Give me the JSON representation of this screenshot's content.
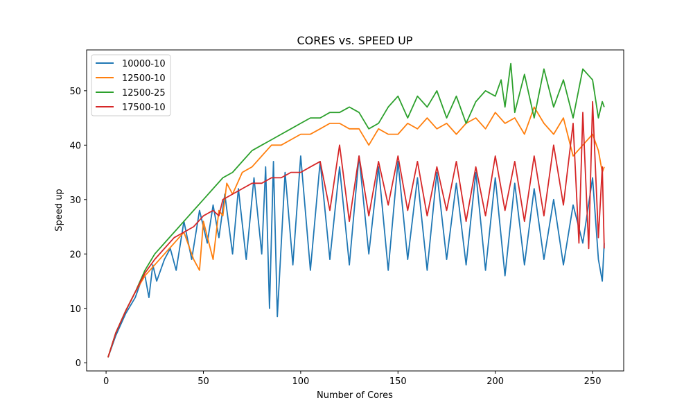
{
  "chart_data": {
    "type": "line",
    "title": "CORES vs. SPEED UP",
    "xlabel": "Number of Cores",
    "ylabel": "Speed up",
    "xlim": [
      -10,
      266
    ],
    "ylim": [
      -1.5,
      57.5
    ],
    "xticks": [
      0,
      50,
      100,
      150,
      200,
      250
    ],
    "yticks": [
      0,
      10,
      20,
      30,
      40,
      50
    ],
    "grid": false,
    "legend_position": "top-left",
    "series": [
      {
        "name": "10000-10",
        "color": "#1f77b4",
        "x": [
          1,
          5,
          10,
          15,
          18,
          20,
          22,
          24,
          26,
          30,
          33,
          36,
          40,
          44,
          48,
          52,
          55,
          58,
          61,
          65,
          68,
          72,
          76,
          80,
          82,
          84,
          86,
          88,
          92,
          96,
          100,
          105,
          110,
          115,
          120,
          125,
          130,
          135,
          140,
          145,
          150,
          155,
          160,
          165,
          170,
          175,
          180,
          185,
          190,
          195,
          200,
          205,
          210,
          215,
          220,
          225,
          230,
          235,
          240,
          245,
          250,
          253,
          255,
          256
        ],
        "y": [
          1,
          5,
          9,
          12,
          15,
          16,
          12,
          18,
          15,
          19,
          21,
          17,
          26,
          19,
          28,
          22,
          29,
          23,
          31,
          20,
          32,
          19,
          34,
          20,
          36,
          10,
          37,
          8.5,
          35,
          18,
          38,
          17,
          37,
          19,
          36,
          18,
          38,
          20,
          36,
          17,
          37,
          19,
          34,
          17,
          35,
          19,
          33,
          18,
          35,
          17,
          34,
          16,
          33,
          18,
          32,
          19,
          30,
          18,
          29,
          22,
          34,
          19,
          15,
          22
        ]
      },
      {
        "name": "12500-10",
        "color": "#ff7f0e",
        "x": [
          1,
          5,
          10,
          15,
          20,
          25,
          30,
          35,
          40,
          45,
          48,
          50,
          55,
          58,
          60,
          62,
          65,
          70,
          75,
          80,
          85,
          90,
          95,
          100,
          105,
          110,
          115,
          120,
          125,
          130,
          135,
          140,
          145,
          150,
          155,
          160,
          165,
          170,
          175,
          180,
          185,
          190,
          195,
          200,
          205,
          210,
          215,
          220,
          225,
          230,
          235,
          240,
          245,
          250,
          253,
          255,
          256
        ],
        "y": [
          1,
          5.5,
          9.5,
          13,
          16,
          18,
          20,
          22,
          24,
          19,
          17,
          26,
          19,
          28,
          27,
          33,
          31,
          35,
          36,
          38,
          40,
          40,
          41,
          42,
          42,
          43,
          44,
          44,
          43,
          43,
          40,
          43,
          42,
          42,
          44,
          43,
          45,
          43,
          44,
          42,
          44,
          45,
          43,
          46,
          44,
          45,
          42,
          47,
          44,
          42,
          45,
          38,
          40,
          42,
          39,
          35,
          36
        ]
      },
      {
        "name": "12500-25",
        "color": "#2ca02c",
        "x": [
          1,
          5,
          10,
          15,
          20,
          25,
          30,
          35,
          40,
          45,
          50,
          55,
          60,
          65,
          70,
          75,
          80,
          85,
          90,
          95,
          100,
          105,
          110,
          115,
          120,
          125,
          130,
          135,
          140,
          145,
          150,
          155,
          160,
          165,
          170,
          175,
          180,
          185,
          190,
          195,
          200,
          203,
          205,
          208,
          210,
          215,
          220,
          225,
          230,
          235,
          240,
          245,
          250,
          253,
          255,
          256
        ],
        "y": [
          1,
          5.5,
          9.5,
          13,
          17,
          20,
          22,
          24,
          26,
          28,
          30,
          32,
          34,
          35,
          37,
          39,
          40,
          41,
          42,
          43,
          44,
          45,
          45,
          46,
          46,
          47,
          46,
          43,
          44,
          47,
          49,
          45,
          49,
          47,
          50,
          45,
          49,
          44,
          48,
          50,
          49,
          52,
          47,
          55,
          46,
          53,
          45,
          54,
          47,
          52,
          45,
          54,
          52,
          45,
          48,
          47
        ]
      },
      {
        "name": "17500-10",
        "color": "#d62728",
        "x": [
          1,
          5,
          10,
          15,
          20,
          25,
          30,
          35,
          40,
          45,
          50,
          55,
          58,
          60,
          65,
          70,
          75,
          80,
          85,
          90,
          95,
          100,
          105,
          110,
          115,
          120,
          125,
          130,
          135,
          140,
          145,
          150,
          155,
          160,
          165,
          170,
          175,
          180,
          185,
          190,
          195,
          200,
          205,
          210,
          215,
          220,
          225,
          230,
          235,
          240,
          243,
          245,
          248,
          250,
          253,
          255,
          256
        ],
        "y": [
          1,
          5.5,
          9.5,
          13,
          16.5,
          19,
          21,
          23,
          24,
          25,
          27,
          28,
          27,
          30,
          31,
          32,
          33,
          33,
          34,
          34,
          35,
          35,
          36,
          37,
          28,
          40,
          26,
          38,
          27,
          37,
          29,
          38,
          28,
          37,
          27,
          36,
          28,
          37,
          26,
          36,
          27,
          38,
          28,
          37,
          26,
          38,
          27,
          40,
          29,
          44,
          22,
          46,
          21,
          48,
          23,
          36,
          21
        ]
      }
    ]
  }
}
